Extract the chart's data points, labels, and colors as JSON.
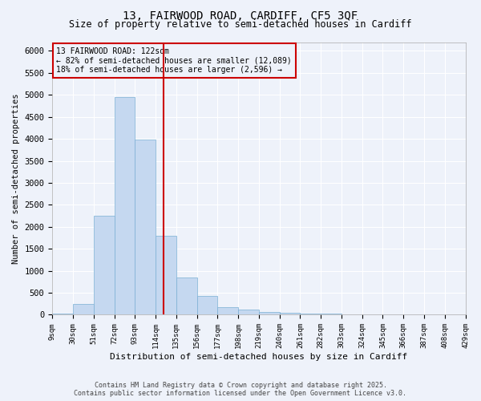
{
  "title1": "13, FAIRWOOD ROAD, CARDIFF, CF5 3QF",
  "title2": "Size of property relative to semi-detached houses in Cardiff",
  "xlabel": "Distribution of semi-detached houses by size in Cardiff",
  "ylabel": "Number of semi-detached properties",
  "footer1": "Contains HM Land Registry data © Crown copyright and database right 2025.",
  "footer2": "Contains public sector information licensed under the Open Government Licence v3.0.",
  "annotation_title": "13 FAIRWOOD ROAD: 122sqm",
  "annotation_line2": "← 82% of semi-detached houses are smaller (12,089)",
  "annotation_line3": "18% of semi-detached houses are larger (2,596) →",
  "vline_x": 122,
  "bar_edges": [
    9,
    30,
    51,
    72,
    93,
    114,
    135,
    156,
    177,
    198,
    219,
    240,
    261,
    282,
    303,
    324,
    345,
    366,
    387,
    408,
    429
  ],
  "bar_heights": [
    30,
    250,
    2250,
    4950,
    3980,
    1800,
    850,
    420,
    175,
    110,
    70,
    45,
    30,
    20,
    10,
    5,
    5,
    3,
    2,
    1
  ],
  "bar_color": "#c5d8f0",
  "bar_edgecolor": "#7aafd4",
  "vline_color": "#cc0000",
  "annotation_box_color": "#cc0000",
  "bg_color": "#eef2fa",
  "ylim": [
    0,
    6200
  ],
  "yticks": [
    0,
    500,
    1000,
    1500,
    2000,
    2500,
    3000,
    3500,
    4000,
    4500,
    5000,
    5500,
    6000
  ],
  "title1_fontsize": 10,
  "title2_fontsize": 8.5,
  "xlabel_fontsize": 8,
  "ylabel_fontsize": 7.5,
  "tick_fontsize": 6.5,
  "ytick_fontsize": 7.5,
  "footer_fontsize": 6,
  "ann_fontsize": 7
}
